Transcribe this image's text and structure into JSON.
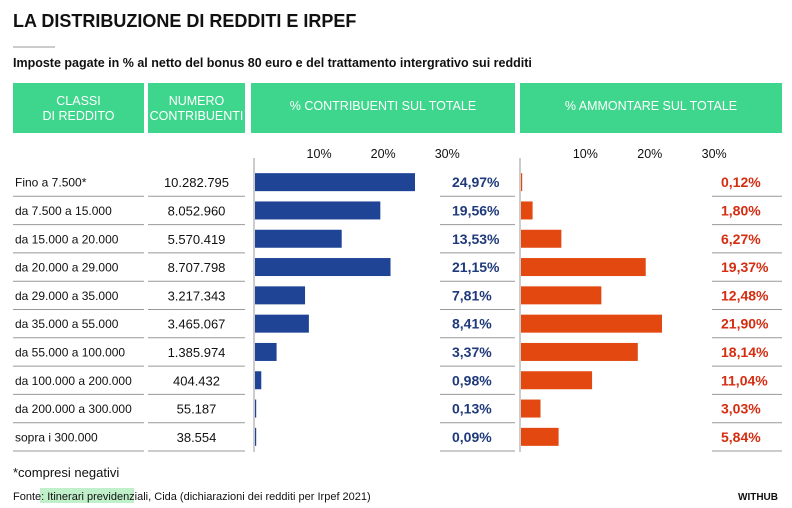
{
  "chart_data": {
    "type": "bar",
    "title": "LA DISTRIBUZIONE DI REDDITI E IRPEF",
    "subtitle": "Imposte pagate in % al netto del bonus 80 euro e del trattamento intergrativo sui redditi",
    "columns": {
      "classi": "CLASSI\nDI REDDITO",
      "numero": "NUMERO\nCONTRIBUENTI",
      "contribuenti": "% CONTRIBUENTI SUL TOTALE",
      "ammontare": "% AMMONTARE SUL TOTALE"
    },
    "axis_ticks": [
      "10%",
      "20%",
      "30%"
    ],
    "tick_values": [
      10,
      20,
      30
    ],
    "xlim": [
      0,
      30
    ],
    "categories": [
      "Fino a 7.500*",
      "da 7.500 a 15.000",
      "da 15.000 a 20.000",
      "da 20.000 a 29.000",
      "da 29.000 a 35.000",
      "da 35.000 a 55.000",
      "da 55.000 a 100.000",
      "da 100.000 a 200.000",
      "da 200.000 a 300.000",
      "sopra i 300.000"
    ],
    "counts": [
      "10.282.795",
      "8.052.960",
      "5.570.419",
      "8.707.798",
      "3.217.343",
      "3.465.067",
      "1.385.974",
      "404.432",
      "55.187",
      "38.554"
    ],
    "series": [
      {
        "name": "% CONTRIBUENTI SUL TOTALE",
        "values": [
          24.97,
          19.56,
          13.53,
          21.15,
          7.81,
          8.41,
          3.37,
          0.98,
          0.13,
          0.09
        ],
        "labels": [
          "24,97%",
          "19,56%",
          "13,53%",
          "21,15%",
          "7,81%",
          "8,41%",
          "3,37%",
          "0,98%",
          "0,13%",
          "0,09%"
        ],
        "color": "#1f4496"
      },
      {
        "name": "% AMMONTARE SUL TOTALE",
        "values": [
          0.12,
          1.8,
          6.27,
          19.37,
          12.48,
          21.9,
          18.14,
          11.04,
          3.03,
          5.84
        ],
        "labels": [
          "0,12%",
          "1,80%",
          "6,27%",
          "19,37%",
          "12,48%",
          "21,90%",
          "18,14%",
          "11,04%",
          "3,03%",
          "5,84%"
        ],
        "color": "#e2480f"
      }
    ],
    "header_color": "#3ed68c",
    "label_color_2": "#d42d10",
    "footnote": "*compresi negativi",
    "source_prefix": "Fonte: ",
    "source_highlight": "Itinerari previdenziali,",
    "source_rest": " Cida (dichiarazioni dei redditi per Irpef 2021)",
    "brand": "WITHUB"
  }
}
